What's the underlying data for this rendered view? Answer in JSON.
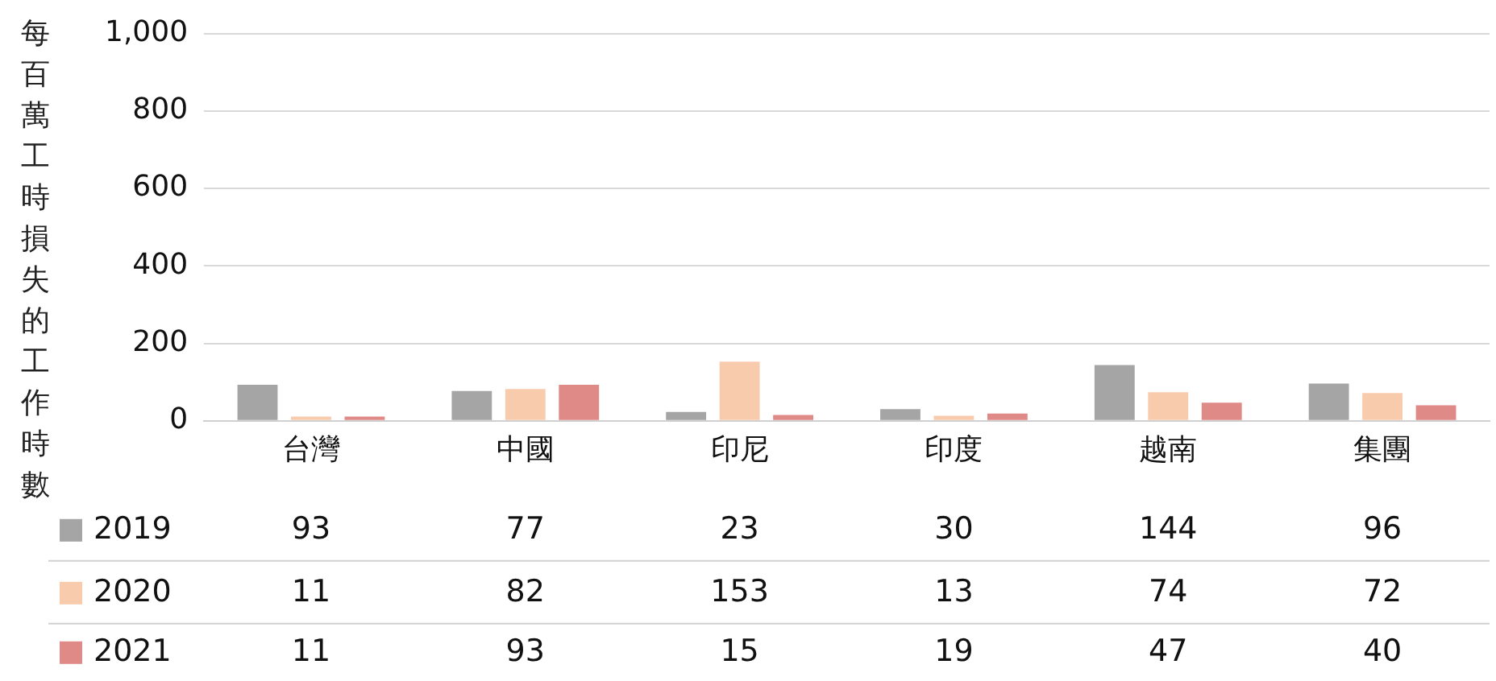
{
  "chart_data": {
    "type": "bar",
    "ylabel": "每百萬工時損失的工作時數",
    "categories": [
      "台灣",
      "中國",
      "印尼",
      "印度",
      "越南",
      "集團"
    ],
    "series": [
      {
        "name": "2019",
        "color": "#a5a5a5",
        "values": [
          93,
          77,
          23,
          30,
          144,
          96
        ]
      },
      {
        "name": "2020",
        "color": "#f8cbad",
        "values": [
          11,
          82,
          153,
          13,
          74,
          72
        ]
      },
      {
        "name": "2021",
        "color": "#e08a87",
        "values": [
          11,
          93,
          15,
          19,
          47,
          40
        ]
      }
    ],
    "ylim": [
      0,
      1000
    ],
    "yticks": [
      0,
      200,
      400,
      600,
      800,
      {
        "value": 1000,
        "label": "1,000"
      }
    ],
    "grid": "y",
    "legend": "bottom left",
    "data_labels": true
  }
}
